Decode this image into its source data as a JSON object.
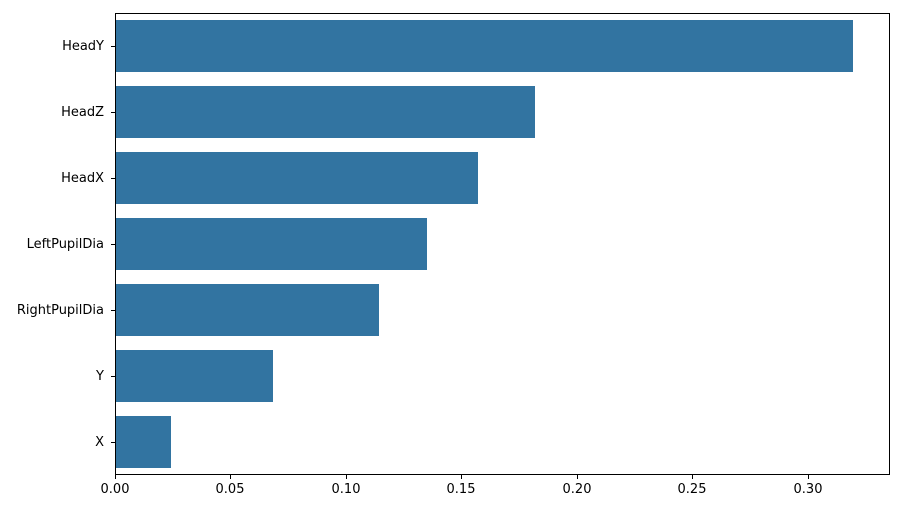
{
  "chart_data": {
    "type": "bar",
    "orientation": "horizontal",
    "title": "",
    "xlabel": "",
    "ylabel": "",
    "categories": [
      "HeadY",
      "HeadZ",
      "HeadX",
      "LeftPupilDia",
      "RightPupilDia",
      "Y",
      "X"
    ],
    "values": [
      0.32,
      0.182,
      0.157,
      0.135,
      0.114,
      0.068,
      0.024
    ],
    "xlim": [
      0,
      0.3355
    ],
    "x_ticks": [
      0.0,
      0.05,
      0.1,
      0.15,
      0.2,
      0.25,
      0.3
    ],
    "x_tick_labels": [
      "0.00",
      "0.05",
      "0.10",
      "0.15",
      "0.20",
      "0.25",
      "0.30"
    ],
    "grid": false,
    "legend": "none",
    "bar_color": "#3274a1",
    "background_color": "#ffffff",
    "spine_color": "#000000",
    "bar_fraction_of_slot": 0.8
  }
}
